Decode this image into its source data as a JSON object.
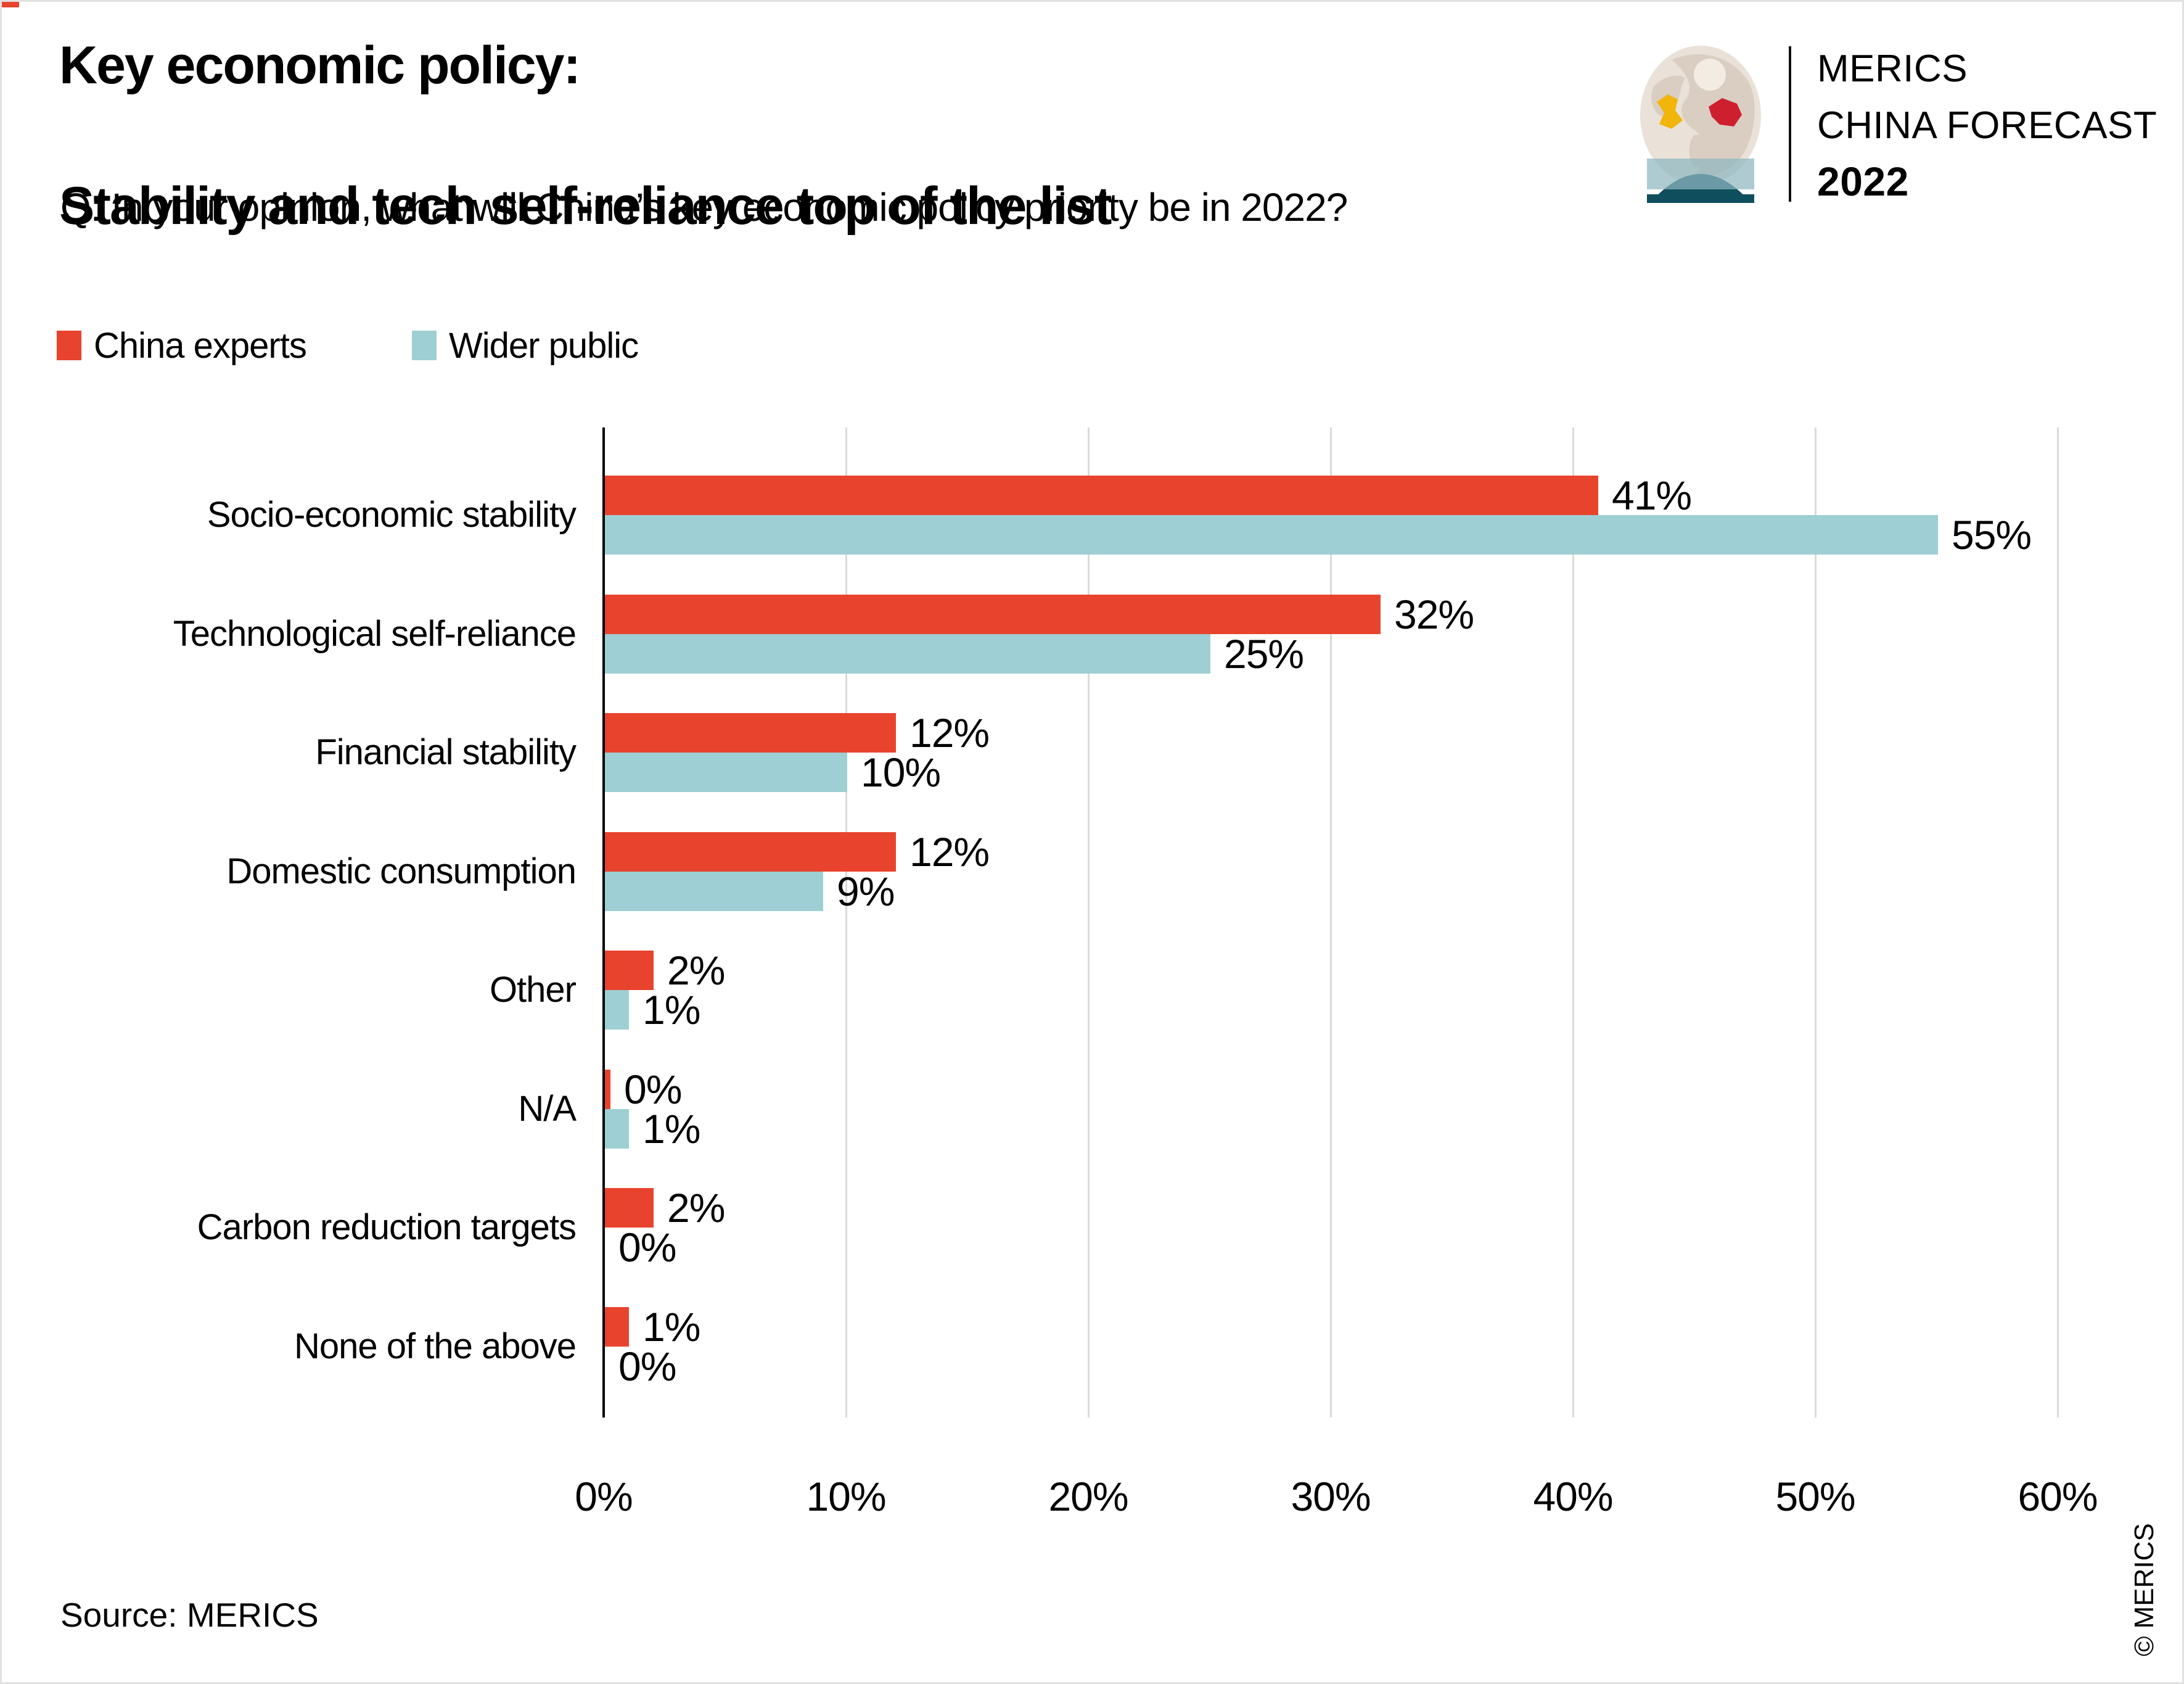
{
  "page": {
    "background": "#ffffff",
    "border_color": "#e2e2e2",
    "corner_mark_color": "#e8432d"
  },
  "header": {
    "title_line1": "Key economic policy:",
    "title_line2": "Stability and tech self-reliance top of the list",
    "subtitle": "Q: In your opinion, what will China’s key economic policy priority be in 2022?"
  },
  "logo": {
    "line1": "MERICS",
    "line2": "CHINA FORECAST",
    "line3": "2022",
    "globe_colors": {
      "sphere": "#eae2d8",
      "land": "#d9cec1",
      "europe_highlight": "#f1b50c",
      "china_highlight": "#ce1f2f",
      "base": "#0f4e5d",
      "band": "#8fb7c0"
    }
  },
  "legend": [
    {
      "label": "China experts",
      "color": "#e8432d"
    },
    {
      "label": "Wider public",
      "color": "#9dcfd4"
    }
  ],
  "chart_data": {
    "type": "bar",
    "orientation": "horizontal",
    "title": "Key economic policy: Stability and tech self-reliance top of the list",
    "subtitle": "Q: In your opinion, what will China’s key economic policy priority be in 2022?",
    "categories": [
      "Socio-economic stability",
      "Technological self-reliance",
      "Financial stability",
      "Domestic consumption",
      "Other",
      "N/A",
      "Carbon reduction targets",
      "None of the above"
    ],
    "series": [
      {
        "name": "China experts",
        "color": "#e8432d",
        "values": [
          41,
          32,
          12,
          12,
          2,
          0,
          2,
          1
        ]
      },
      {
        "name": "Wider public",
        "color": "#9dcfd4",
        "values": [
          55,
          25,
          10,
          9,
          1,
          1,
          0,
          0
        ]
      }
    ],
    "value_suffix": "%",
    "x_ticks": [
      "0%",
      "10%",
      "20%",
      "30%",
      "40%",
      "50%",
      "60%"
    ],
    "xlim": [
      0,
      60
    ],
    "grid": true,
    "gridline_color": "#dadada",
    "axis_color": "#000000",
    "legend_position": "top-left"
  },
  "footer": {
    "source": "Source: MERICS",
    "copyright": "© MERICS"
  }
}
